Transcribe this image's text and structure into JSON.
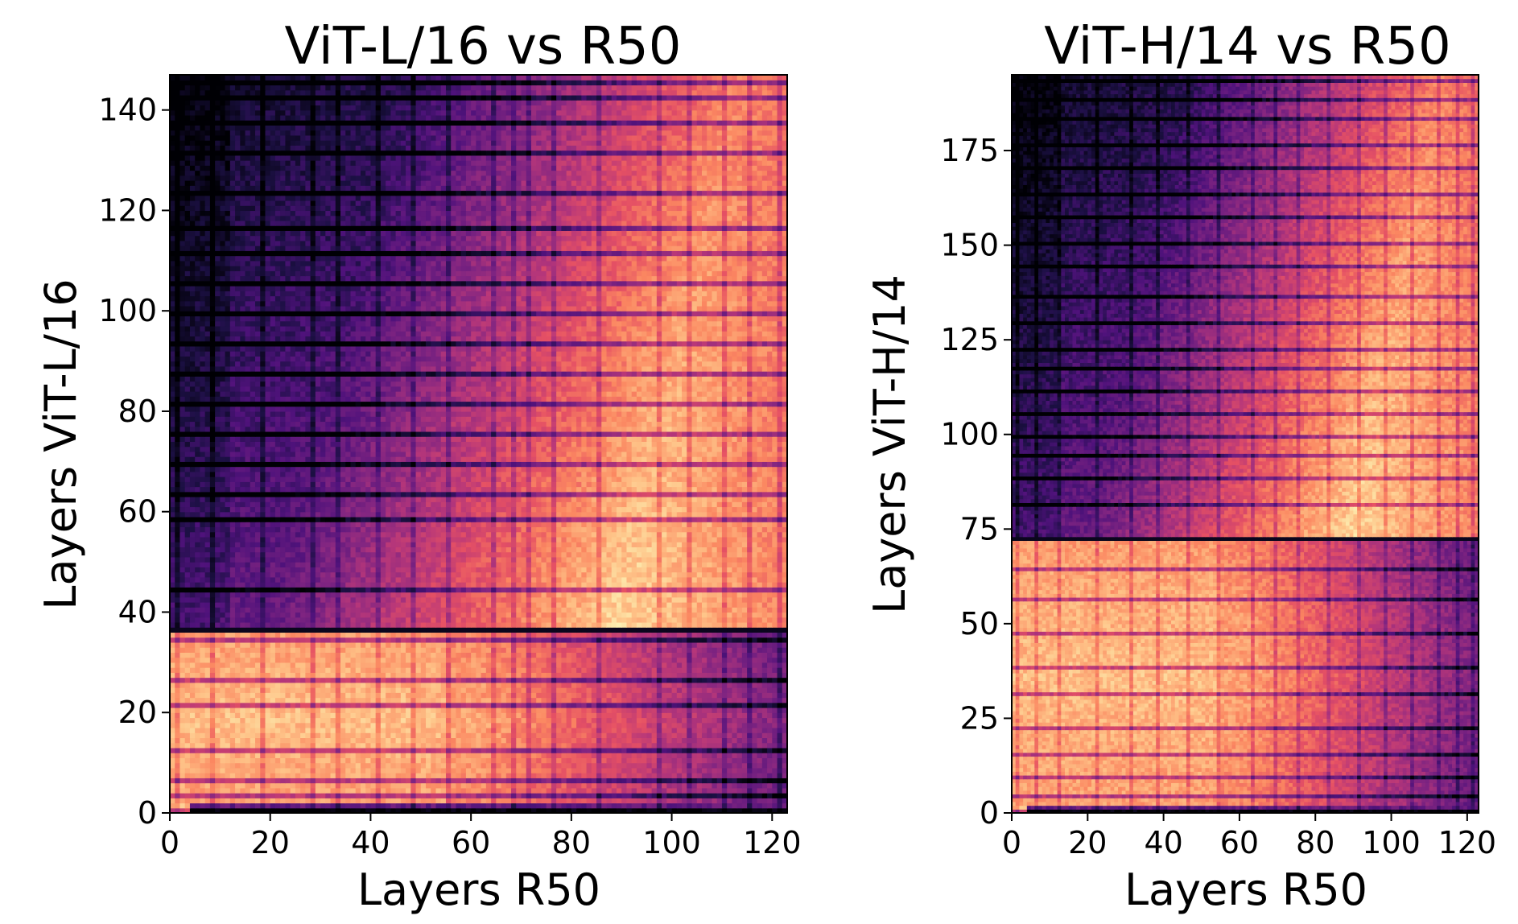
{
  "chart_data": [
    {
      "type": "heatmap",
      "title": "ViT-L/16 vs R50",
      "xlabel": "Layers R50",
      "ylabel": "Layers ViT-L/16",
      "xlim": [
        0,
        123
      ],
      "ylim": [
        0,
        147
      ],
      "xticks": [
        0,
        20,
        40,
        60,
        80,
        100,
        120
      ],
      "yticks": [
        0,
        20,
        40,
        60,
        80,
        100,
        120,
        140
      ],
      "colormap": "magma",
      "legend": "none",
      "grid": false,
      "block_boundary_y": 36,
      "dark_rows": [
        0,
        3,
        6,
        12,
        21,
        26,
        34,
        36,
        44,
        58,
        63,
        69,
        75,
        81,
        87,
        93,
        99,
        105,
        111,
        116,
        123,
        131,
        137,
        142,
        145
      ],
      "dark_cols": [
        1,
        8,
        18,
        28,
        33,
        41,
        48,
        55,
        64,
        68,
        71,
        76,
        85,
        97,
        103,
        110,
        115,
        121
      ],
      "value_range": [
        0,
        1
      ]
    },
    {
      "type": "heatmap",
      "title": "ViT-H/14 vs R50",
      "xlabel": "Layers R50",
      "ylabel": "Layers ViT-H/14",
      "xlim": [
        0,
        123
      ],
      "ylim": [
        0,
        195
      ],
      "xticks": [
        0,
        20,
        40,
        60,
        80,
        100,
        120
      ],
      "yticks": [
        0,
        25,
        50,
        75,
        100,
        125,
        150,
        175
      ],
      "colormap": "magma",
      "legend": "none",
      "grid": false,
      "block_boundary_y": 72,
      "dark_rows": [
        0,
        4,
        9,
        15,
        22,
        31,
        38,
        47,
        56,
        64,
        72,
        81,
        88,
        94,
        99,
        105,
        111,
        117,
        122,
        129,
        136,
        144,
        150,
        157,
        163,
        170,
        176,
        183,
        188,
        193
      ],
      "dark_cols": [
        1,
        6,
        12,
        22,
        31,
        38,
        46,
        54,
        63,
        69,
        75,
        83,
        91,
        98,
        105,
        112,
        117,
        121
      ],
      "value_range": [
        0,
        1
      ]
    }
  ]
}
